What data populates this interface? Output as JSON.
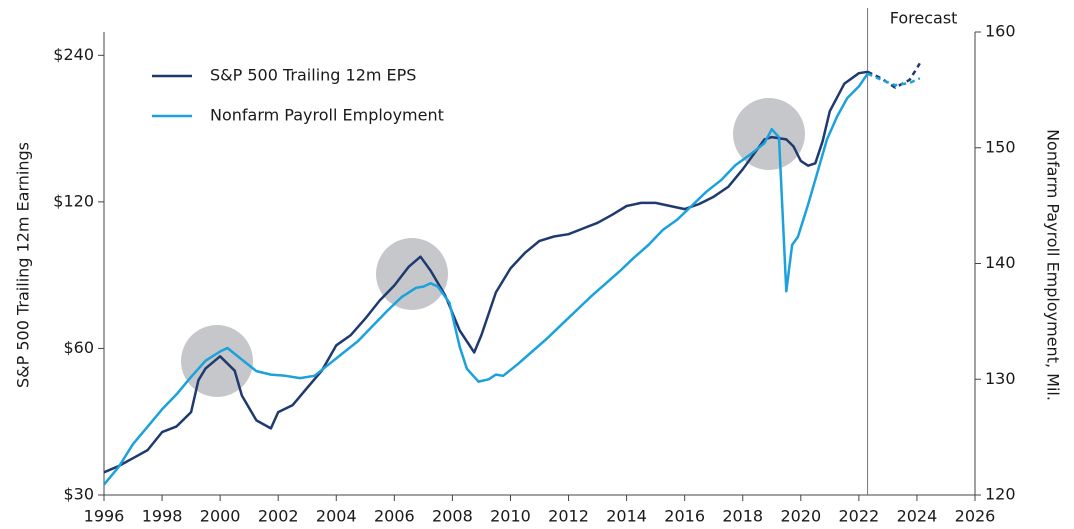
{
  "chart_data": {
    "type": "line",
    "y_label": "S&P 500 Trailing 12m Earnings",
    "y2_label": "Nonfarm Payroll Employment, Mil.",
    "annotation": {
      "label": "Forecast",
      "x": 2022.3
    },
    "xlim": [
      1996,
      2026
    ],
    "xticks": [
      1996,
      1998,
      2000,
      2002,
      2004,
      2006,
      2008,
      2010,
      2012,
      2014,
      2016,
      2018,
      2020,
      2022,
      2024,
      2026
    ],
    "ylim": [
      30,
      268
    ],
    "yscale": "log",
    "yticks": [
      {
        "value": 30,
        "label": "$30"
      },
      {
        "value": 60,
        "label": "$60"
      },
      {
        "value": 120,
        "label": "$120"
      },
      {
        "value": 240,
        "label": "$240"
      }
    ],
    "y2lim": [
      120,
      160
    ],
    "y2ticks": [
      120,
      130,
      140,
      150,
      160
    ],
    "legend": "upper-left",
    "series": [
      {
        "name": "S&P 500 Trailing 12m EPS",
        "color": "#1f3a6e",
        "x": [
          1996.0,
          1996.5,
          1997.0,
          1997.5,
          1998.0,
          1998.5,
          1999.0,
          1999.25,
          1999.5,
          2000.0,
          2000.5,
          2000.75,
          2001.25,
          2001.75,
          2002.0,
          2002.5,
          2003.0,
          2003.5,
          2004.0,
          2004.5,
          2005.0,
          2005.5,
          2006.0,
          2006.5,
          2006.9,
          2007.25,
          2007.75,
          2008.25,
          2008.75,
          2009.0,
          2009.5,
          2010.0,
          2010.5,
          2011.0,
          2011.5,
          2012.0,
          2012.5,
          2013.0,
          2013.5,
          2014.0,
          2014.5,
          2015.0,
          2015.5,
          2016.0,
          2016.5,
          2017.0,
          2017.5,
          2018.0,
          2018.5,
          2018.75,
          2019.0,
          2019.5,
          2019.75,
          2020.0,
          2020.25,
          2020.5,
          2020.75,
          2021.0,
          2021.5,
          2022.0,
          2022.3,
          2022.75,
          2023.25,
          2023.75,
          2024.1
        ],
        "values": [
          33.4,
          34.4,
          35.7,
          37.1,
          40.4,
          41.5,
          44.4,
          51.6,
          54.6,
          57.8,
          54,
          48,
          42.7,
          41.1,
          44.4,
          45.9,
          49.8,
          54,
          60.9,
          63.9,
          69.1,
          75.3,
          80.8,
          88.3,
          92.6,
          86.7,
          77.2,
          65.3,
          58.9,
          63.9,
          78.2,
          87.6,
          94.3,
          99.8,
          101.9,
          103,
          105.8,
          108.7,
          112.9,
          117.7,
          119.4,
          119.4,
          117.7,
          116,
          118.8,
          123,
          128.8,
          140,
          153.9,
          161.3,
          163,
          161.3,
          156,
          145.7,
          142.4,
          144,
          159.8,
          184.3,
          210,
          220.5,
          222,
          215.6,
          206,
          213.8,
          231
        ]
      },
      {
        "name": "Nonfarm Payroll Employment",
        "color": "#1ba1dc",
        "axis": "y2",
        "x": [
          1996.0,
          1996.5,
          1997.0,
          1997.5,
          1998.0,
          1998.5,
          1999.0,
          1999.5,
          2000.0,
          2000.25,
          2000.75,
          2001.25,
          2001.75,
          2002.25,
          2002.75,
          2003.25,
          2003.75,
          2004.25,
          2004.75,
          2005.25,
          2005.75,
          2006.25,
          2006.75,
          2007.0,
          2007.25,
          2007.5,
          2007.9,
          2008.25,
          2008.5,
          2008.9,
          2009.25,
          2009.5,
          2009.75,
          2010.25,
          2010.75,
          2011.25,
          2011.75,
          2012.25,
          2012.75,
          2013.25,
          2013.75,
          2014.25,
          2014.75,
          2015.25,
          2015.75,
          2016.25,
          2016.75,
          2017.25,
          2017.75,
          2018.25,
          2018.75,
          2019.0,
          2019.25,
          2019.5,
          2019.7,
          2019.9,
          2020.25,
          2020.6,
          2020.9,
          2021.25,
          2021.6,
          2022.0,
          2022.3,
          2022.75,
          2023.25,
          2023.75,
          2024.1
        ],
        "values": [
          120.9,
          122.4,
          124.4,
          125.9,
          127.4,
          128.7,
          130.2,
          131.6,
          132.4,
          132.7,
          131.7,
          130.7,
          130.4,
          130.3,
          130.1,
          130.3,
          131.3,
          132.3,
          133.3,
          134.6,
          135.9,
          137.1,
          137.9,
          138,
          138.3,
          138,
          136.6,
          132.8,
          130.9,
          129.8,
          130,
          130.4,
          130.3,
          131.3,
          132.4,
          133.5,
          134.7,
          135.9,
          137.1,
          138.2,
          139.3,
          140.5,
          141.6,
          142.9,
          143.8,
          145,
          146.2,
          147.2,
          148.5,
          149.4,
          150.4,
          151.6,
          150.9,
          137.6,
          141.6,
          142.3,
          145.1,
          148.1,
          150.7,
          152.7,
          154.3,
          155.3,
          156.4,
          155.9,
          155.4,
          155.6,
          156
        ]
      }
    ]
  }
}
